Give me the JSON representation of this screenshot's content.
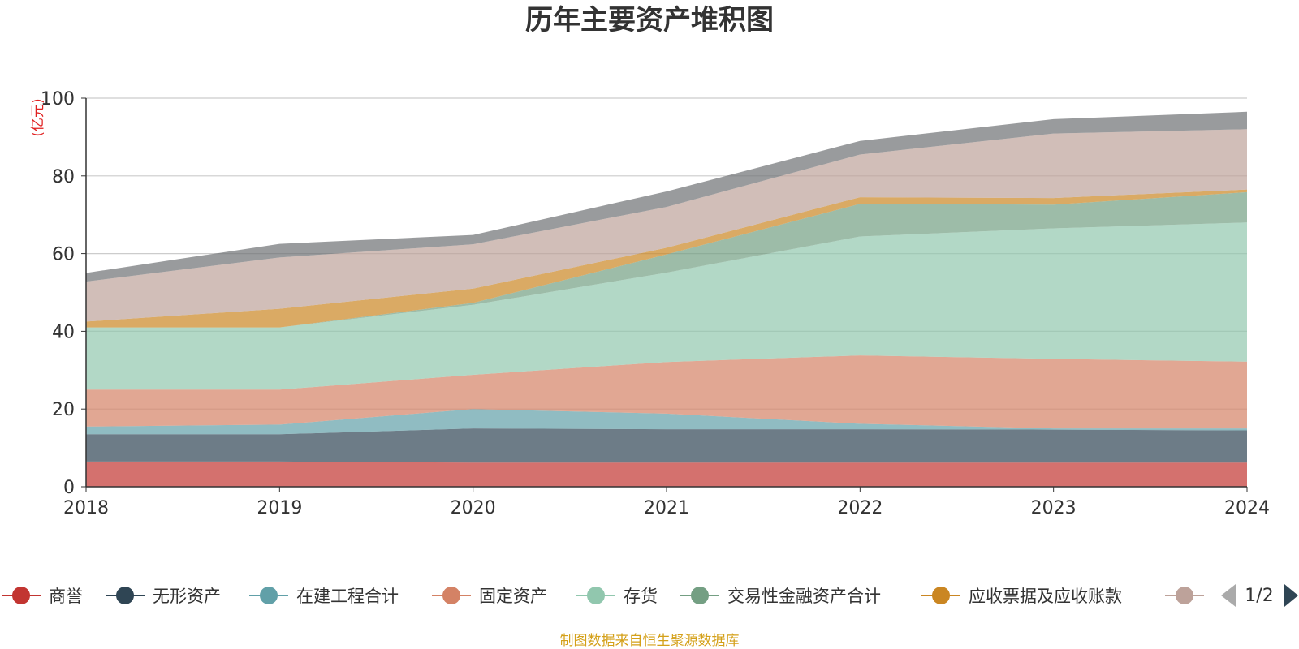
{
  "chart_data": {
    "type": "area",
    "stacked": true,
    "title": "历年主要资产堆积图",
    "unit_label": "(亿元)",
    "x": [
      "2018",
      "2019",
      "2020",
      "2021",
      "2022",
      "2023",
      "2024"
    ],
    "ylim": [
      0,
      100
    ],
    "yticks": [
      "0",
      "20",
      "40",
      "60",
      "80",
      "100"
    ],
    "grid": true,
    "legend_position": "bottom",
    "legend_page": "1/2",
    "series": [
      {
        "name": "商誉",
        "color": "#c23531",
        "values": [
          6.5,
          6.5,
          6.2,
          6.2,
          6.2,
          6.2,
          6.2
        ]
      },
      {
        "name": "无形资产",
        "color": "#2f4554",
        "values": [
          7.0,
          7.0,
          8.8,
          8.6,
          8.6,
          8.5,
          8.3
        ]
      },
      {
        "name": "在建工程合计",
        "color": "#61a0a8",
        "values": [
          2.0,
          2.5,
          5.0,
          4.0,
          1.4,
          0.3,
          0.5
        ]
      },
      {
        "name": "固定资产",
        "color": "#d48265",
        "values": [
          9.5,
          9.0,
          8.8,
          13.3,
          17.6,
          17.9,
          17.2
        ]
      },
      {
        "name": "存货",
        "color": "#91c7ae",
        "values": [
          16.0,
          16.0,
          18.0,
          23.0,
          30.6,
          33.6,
          35.8
        ]
      },
      {
        "name": "交易性金融资产合计",
        "color": "#749f83",
        "values": [
          0.0,
          0.0,
          0.5,
          4.7,
          8.4,
          6.1,
          7.8
        ]
      },
      {
        "name": "应收票据及应收账款",
        "color": "#ca8622",
        "values": [
          1.5,
          4.8,
          3.7,
          1.7,
          1.7,
          1.7,
          0.7
        ]
      },
      {
        "name": "",
        "color": "#bda29a",
        "values": [
          10.3,
          13.2,
          11.4,
          10.5,
          11.0,
          16.6,
          15.5
        ]
      },
      {
        "name": "",
        "color": "#6e7074",
        "values": [
          2.2,
          3.5,
          2.4,
          4.0,
          3.5,
          3.7,
          4.5
        ]
      }
    ]
  },
  "footer": {
    "source_note": "制图数据来自恒生聚源数据库"
  },
  "colors": {
    "axis": "#333333",
    "grid": "#cccccc",
    "pager_active": "#2f4554",
    "pager_inactive": "#aaaaaa"
  }
}
